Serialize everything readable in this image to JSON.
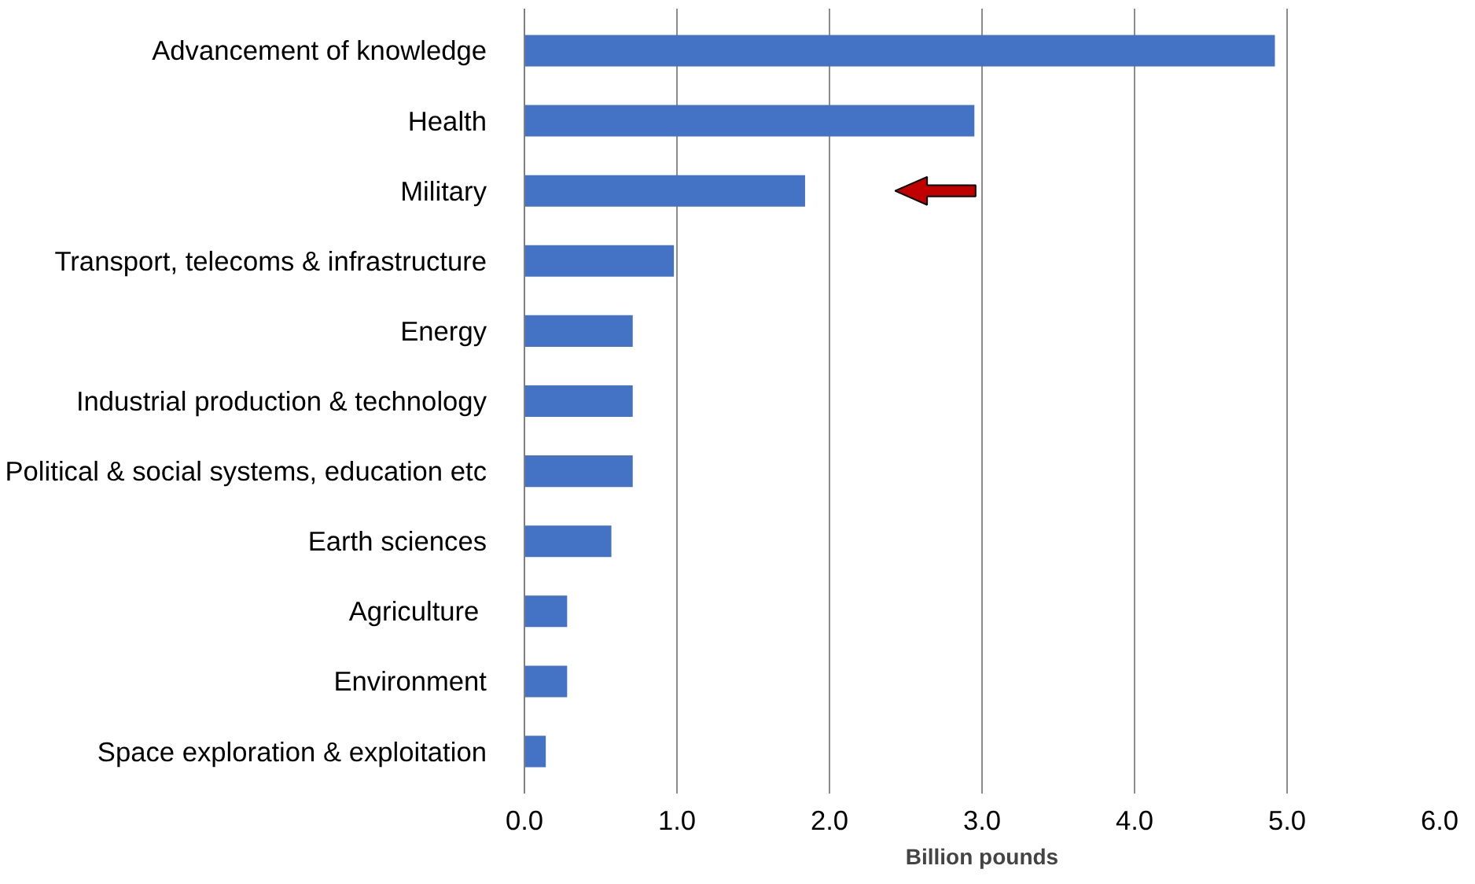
{
  "chart_data": {
    "type": "bar",
    "orientation": "horizontal",
    "xlabel": "Billion pounds",
    "categories": [
      "Advancement of knowledge",
      "Health",
      "Military",
      "Transport, telecoms & infrastructure",
      "Energy",
      "Industrial production & technology",
      "Political & social systems, education etc",
      "Earth sciences",
      "Agriculture ",
      "Environment",
      "Space exploration & exploitation"
    ],
    "values": [
      4.92,
      2.95,
      1.84,
      0.98,
      0.71,
      0.71,
      0.71,
      0.57,
      0.28,
      0.28,
      0.14
    ],
    "color": "#4472c4",
    "xlim": [
      0,
      6
    ],
    "xticks": [
      {
        "value": 0,
        "label": "0.0"
      },
      {
        "value": 1,
        "label": "1.0"
      },
      {
        "value": 2,
        "label": "2.0"
      },
      {
        "value": 3,
        "label": "3.0"
      },
      {
        "value": 4,
        "label": "4.0"
      },
      {
        "value": 5,
        "label": "5.0"
      },
      {
        "value": 6,
        "label": "6.0"
      }
    ],
    "grid": "x"
  }
}
